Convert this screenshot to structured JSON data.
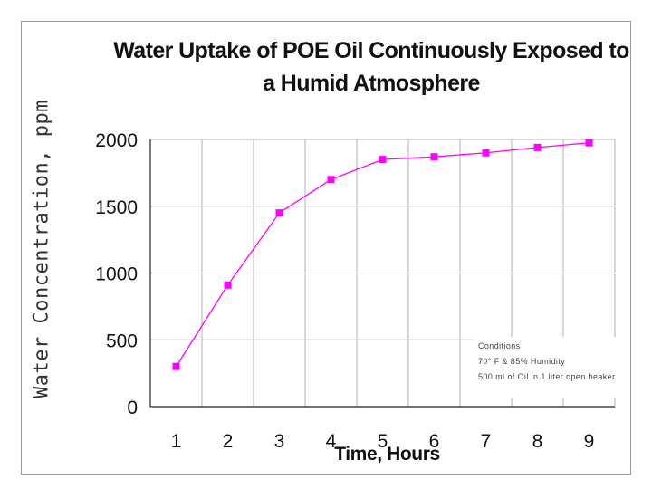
{
  "colors": {
    "series": "#ff00ff",
    "grid": "#b0b0b0",
    "axis": "#222222"
  },
  "chart_data": {
    "type": "line",
    "title": "Water Uptake of POE Oil Continuously Exposed to a Humid Atmosphere",
    "xlabel": "Time, Hours",
    "ylabel": "Water Concentration, ppm",
    "x": [
      1,
      2,
      3,
      4,
      5,
      6,
      7,
      8,
      9
    ],
    "xticks": [
      "1",
      "2",
      "3",
      "4",
      "5",
      "6",
      "7",
      "8",
      "9"
    ],
    "yticks": [
      0,
      500,
      1000,
      1500,
      2000
    ],
    "ylim": [
      0,
      2000
    ],
    "grid": true,
    "series": [
      {
        "values": [
          300,
          910,
          1450,
          1700,
          1850,
          1870,
          1900,
          1940,
          1975
        ]
      }
    ],
    "annotation": {
      "lines": [
        "Conditions",
        "70° F & 85% Humidity",
        "500 ml of Oil in 1 liter open beaker"
      ]
    }
  }
}
